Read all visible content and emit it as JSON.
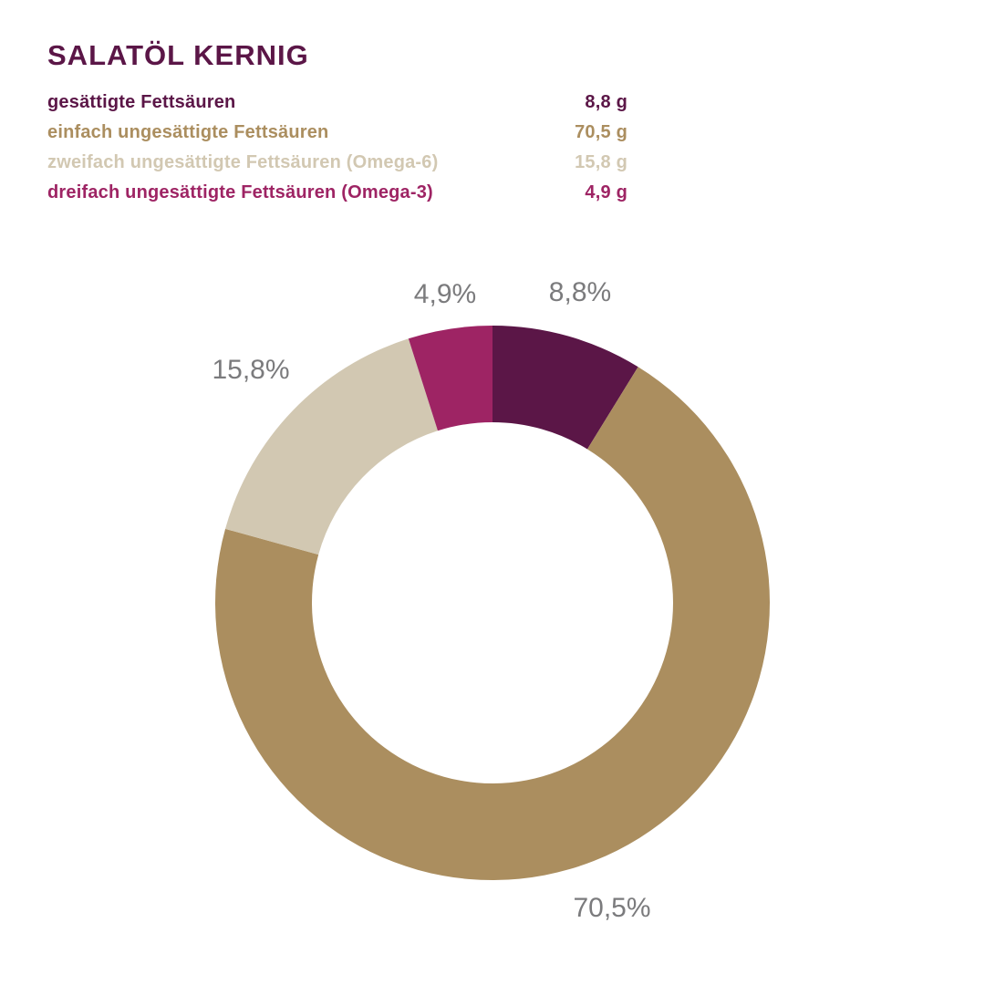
{
  "page": {
    "background": "#ffffff"
  },
  "header": {
    "title": "SALATÖL KERNIG",
    "title_color": "#5b1647"
  },
  "legend": {
    "rows": [
      {
        "label": "gesättigte Fettsäuren",
        "value": "8,8 g",
        "color": "#5b1647"
      },
      {
        "label": "einfach ungesättigte Fettsäuren",
        "value": "70,5 g",
        "color": "#ab8e5f"
      },
      {
        "label": "zweifach ungesättigte Fettsäuren (Omega-6)",
        "value": "15,8 g",
        "color": "#d2c8b2"
      },
      {
        "label": "dreifach ungesättigte Fettsäuren (Omega-3)",
        "value": "4,9 g",
        "color": "#9e2464"
      }
    ]
  },
  "chart_data": {
    "type": "pie",
    "subtype": "donut",
    "title": "SALATÖL KERNIG",
    "unit": "g",
    "categories": [
      "gesättigte Fettsäuren",
      "einfach ungesättigte Fettsäuren",
      "zweifach ungesättigte Fettsäuren (Omega-6)",
      "dreifach ungesättigte Fettsäuren (Omega-3)"
    ],
    "values": [
      8.8,
      70.5,
      15.8,
      4.9
    ],
    "grams": [
      "8,8 g",
      "70,5 g",
      "15,8 g",
      "4,9 g"
    ],
    "percent_labels": [
      "8,8%",
      "70,5%",
      "15,8%",
      "4,9%"
    ],
    "colors": [
      "#5b1647",
      "#ab8e5f",
      "#d2c8b2",
      "#9e2464"
    ],
    "label_color": "#7b7b7d",
    "start_angle_deg": 0,
    "direction": "clockwise",
    "legend_position": "top-left",
    "grid": false
  }
}
